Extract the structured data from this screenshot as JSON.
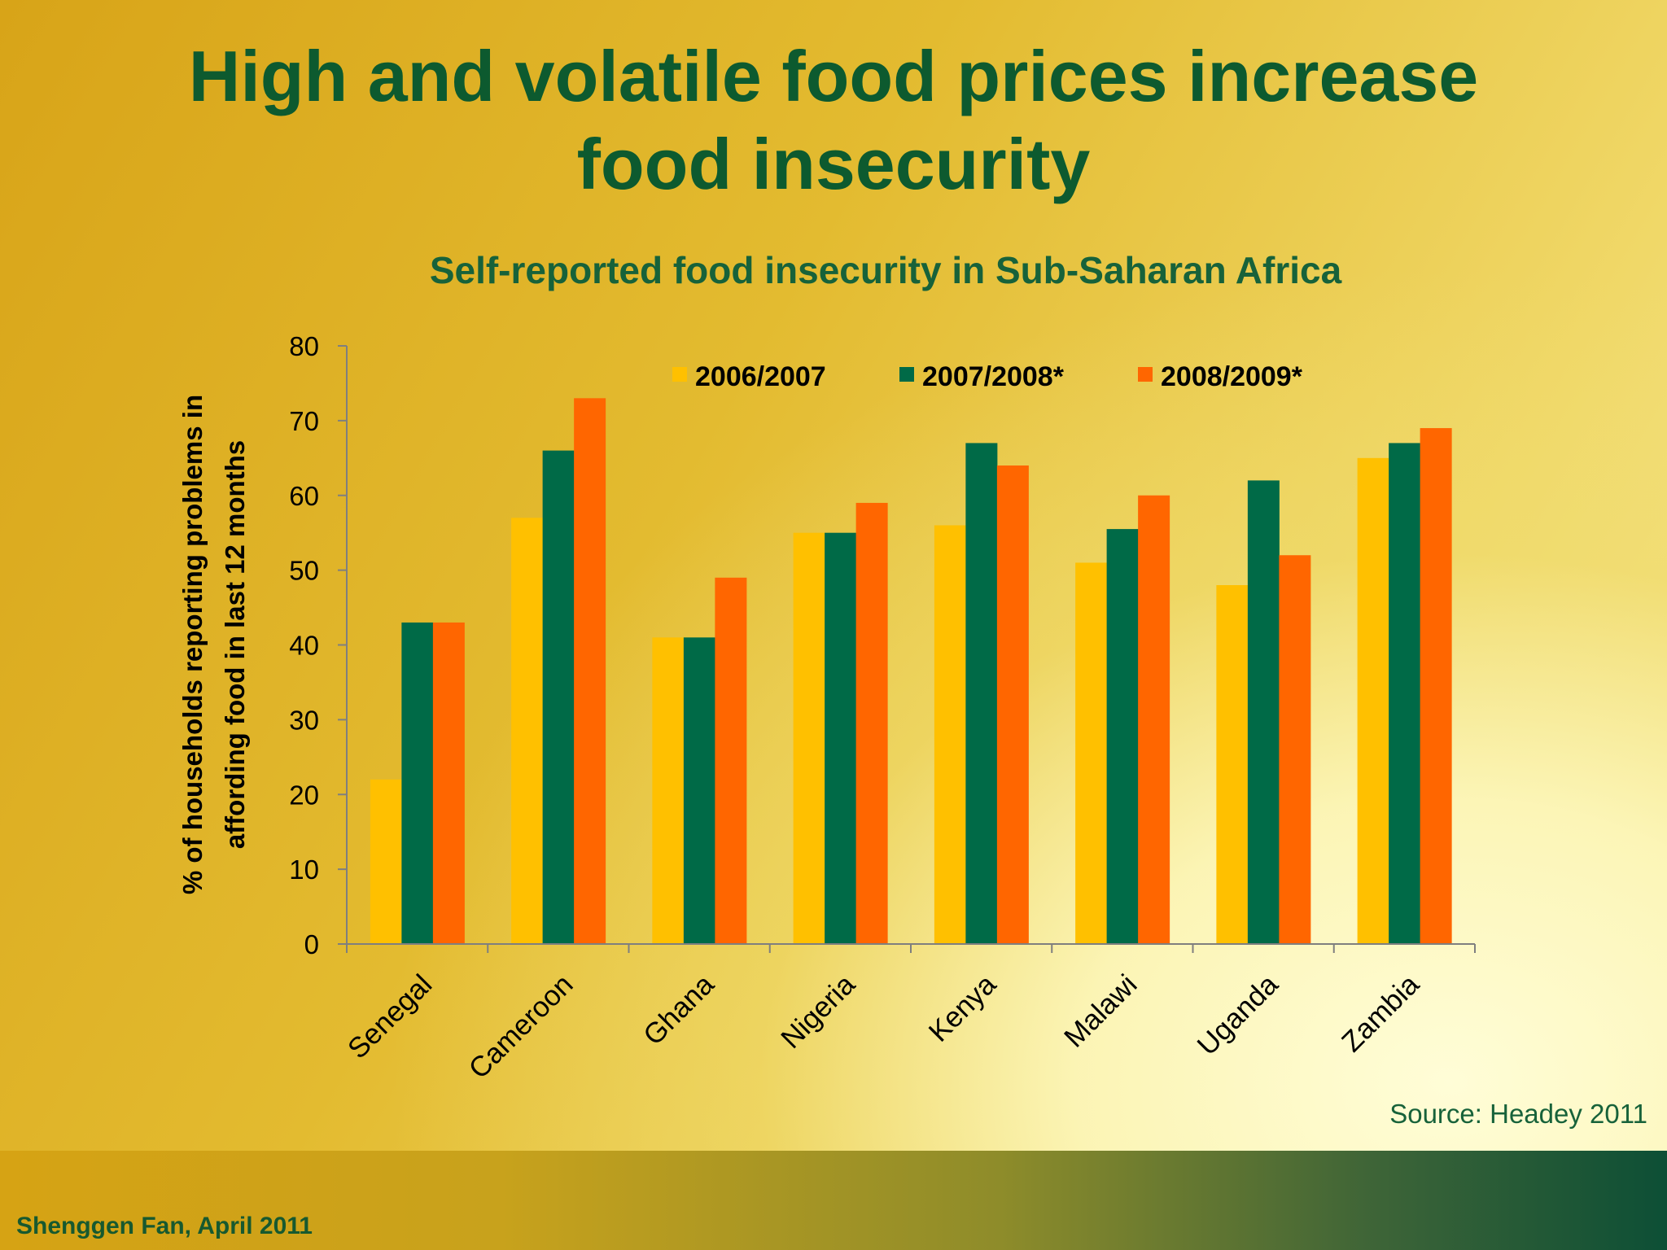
{
  "slide": {
    "title": "High and volatile food prices increase\nfood insecurity",
    "source": "Source: Headey 2011",
    "footer": "Shenggen Fan, April 2011"
  },
  "colors": {
    "series": [
      "#ffc000",
      "#006a47",
      "#ff6600"
    ],
    "title": "#0d5a2f",
    "axis": "#7f7f7f"
  },
  "chart_data": {
    "type": "bar",
    "title": "Self-reported food insecurity in Sub-Saharan Africa",
    "xlabel": "",
    "ylabel": "% of households reporting problems in affording food in last 12 months",
    "ylabel_lines": [
      "% of households reporting problems in",
      "affording food in last 12 months"
    ],
    "ylim": [
      0,
      80
    ],
    "yticks": [
      0,
      10,
      20,
      30,
      40,
      50,
      60,
      70,
      80
    ],
    "grid": false,
    "legend_position": "top",
    "categories": [
      "Senegal",
      "Cameroon",
      "Ghana",
      "Nigeria",
      "Kenya",
      "Malawi",
      "Uganda",
      "Zambia"
    ],
    "series": [
      {
        "name": "2006/2007",
        "values": [
          22,
          57,
          41,
          55,
          56,
          51,
          48,
          65
        ]
      },
      {
        "name": "2007/2008*",
        "values": [
          43,
          66,
          41,
          55,
          67,
          55.5,
          62,
          67
        ]
      },
      {
        "name": "2008/2009*",
        "values": [
          43,
          73,
          49,
          59,
          64,
          60,
          52,
          69
        ]
      }
    ]
  }
}
